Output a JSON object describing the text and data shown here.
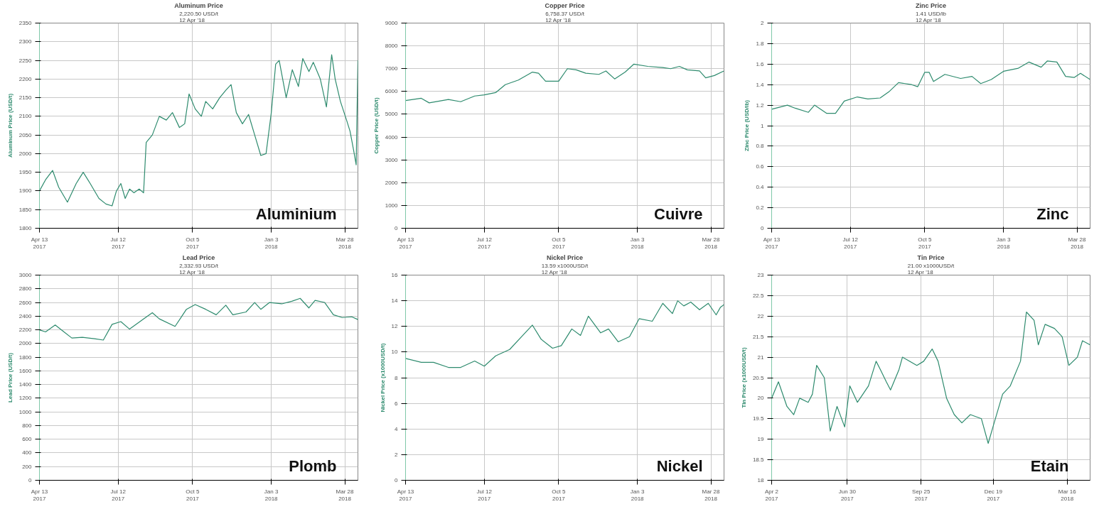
{
  "chart_data": [
    {
      "type": "line",
      "title": "Aluminum Price",
      "subtitle": "2,220.50 USD/t\n12 Apr '18",
      "ylabel": "Aluminum Price (USD/t)",
      "annotations": [
        "Aluminium"
      ],
      "grid": true,
      "xlim": [
        "2017-04-13",
        "2018-04-12"
      ],
      "ylim": [
        1800,
        2350
      ],
      "yticks": [
        1800,
        1850,
        1900,
        1950,
        2000,
        2050,
        2100,
        2150,
        2200,
        2250,
        2300,
        2350
      ],
      "xticks": [
        {
          "value": "2017-04-13",
          "label": "Apr 13\n2017"
        },
        {
          "value": "2017-07-12",
          "label": "Jul 12\n2017"
        },
        {
          "value": "2017-10-05",
          "label": "Oct 5\n2017"
        },
        {
          "value": "2018-01-03",
          "label": "Jan 3\n2018"
        },
        {
          "value": "2018-03-28",
          "label": "Mar 28\n2018"
        }
      ],
      "x": [
        "2017-04-13",
        "2017-04-20",
        "2017-04-28",
        "2017-05-05",
        "2017-05-15",
        "2017-05-25",
        "2017-06-02",
        "2017-06-10",
        "2017-06-20",
        "2017-06-28",
        "2017-07-05",
        "2017-07-10",
        "2017-07-15",
        "2017-07-20",
        "2017-07-25",
        "2017-07-30",
        "2017-08-05",
        "2017-08-10",
        "2017-08-13",
        "2017-08-20",
        "2017-08-28",
        "2017-09-05",
        "2017-09-12",
        "2017-09-20",
        "2017-09-26",
        "2017-10-01",
        "2017-10-08",
        "2017-10-15",
        "2017-10-20",
        "2017-10-28",
        "2017-11-05",
        "2017-11-12",
        "2017-11-18",
        "2017-11-24",
        "2017-12-01",
        "2017-12-08",
        "2017-12-15",
        "2017-12-22",
        "2017-12-28",
        "2018-01-03",
        "2018-01-08",
        "2018-01-12",
        "2018-01-20",
        "2018-01-27",
        "2018-02-03",
        "2018-02-08",
        "2018-02-15",
        "2018-02-20",
        "2018-02-28",
        "2018-03-07",
        "2018-03-13",
        "2018-03-17",
        "2018-03-23",
        "2018-03-30",
        "2018-04-03",
        "2018-04-07",
        "2018-04-10",
        "2018-04-12"
      ],
      "series": [
        {
          "color": "#2e8b6e",
          "values": [
            1900,
            1930,
            1955,
            1910,
            1870,
            1920,
            1950,
            1920,
            1880,
            1865,
            1860,
            1900,
            1920,
            1880,
            1905,
            1895,
            1905,
            1895,
            2030,
            2050,
            2100,
            2090,
            2110,
            2070,
            2080,
            2160,
            2120,
            2100,
            2140,
            2120,
            2150,
            2170,
            2185,
            2110,
            2080,
            2105,
            2050,
            1995,
            2000,
            2110,
            2240,
            2250,
            2150,
            2225,
            2180,
            2255,
            2220,
            2245,
            2200,
            2125,
            2265,
            2200,
            2140,
            2090,
            2060,
            2010,
            1970,
            2250
          ]
        }
      ]
    },
    {
      "type": "line",
      "title": "Copper Price",
      "subtitle": "6,758.37 USD/t\n12 Apr '18",
      "ylabel": "Copper Price (USD/t)",
      "annotations": [
        "Cuivre"
      ],
      "grid": true,
      "xlim": [
        "2017-04-13",
        "2018-04-12"
      ],
      "ylim": [
        0,
        9000
      ],
      "yticks": [
        0,
        1000,
        2000,
        3000,
        4000,
        5000,
        6000,
        7000,
        8000,
        9000
      ],
      "xticks": [
        {
          "value": "2017-04-13",
          "label": "Apr 13\n2017"
        },
        {
          "value": "2017-07-12",
          "label": "Jul 12\n2017"
        },
        {
          "value": "2017-10-05",
          "label": "Oct 5\n2017"
        },
        {
          "value": "2018-01-03",
          "label": "Jan 3\n2018"
        },
        {
          "value": "2018-03-28",
          "label": "Mar 28\n2018"
        }
      ],
      "x": [
        "2017-04-13",
        "2017-05-01",
        "2017-05-10",
        "2017-06-01",
        "2017-06-15",
        "2017-07-01",
        "2017-07-12",
        "2017-07-25",
        "2017-08-05",
        "2017-08-20",
        "2017-09-05",
        "2017-09-12",
        "2017-09-20",
        "2017-10-05",
        "2017-10-15",
        "2017-10-25",
        "2017-11-05",
        "2017-11-20",
        "2017-11-28",
        "2017-12-08",
        "2017-12-20",
        "2017-12-30",
        "2018-01-15",
        "2018-02-01",
        "2018-02-10",
        "2018-02-20",
        "2018-03-01",
        "2018-03-15",
        "2018-03-22",
        "2018-04-01",
        "2018-04-12"
      ],
      "series": [
        {
          "color": "#2e8b6e",
          "values": [
            5600,
            5700,
            5500,
            5650,
            5550,
            5800,
            5850,
            5950,
            6300,
            6500,
            6850,
            6800,
            6450,
            6450,
            7000,
            6950,
            6800,
            6750,
            6900,
            6550,
            6850,
            7200,
            7100,
            7050,
            7000,
            7100,
            6950,
            6900,
            6600,
            6700,
            6900
          ]
        }
      ]
    },
    {
      "type": "line",
      "title": "Zinc Price",
      "subtitle": "1.41 USD/lb\n12 Apr '18",
      "ylabel": "Zinc Price (USD/lb)",
      "annotations": [
        "Zinc"
      ],
      "grid": true,
      "xlim": [
        "2017-04-13",
        "2018-04-12"
      ],
      "ylim": [
        0,
        2
      ],
      "yticks": [
        0,
        {
          "value": 0.2,
          "label": "0.2"
        },
        {
          "value": 0.4,
          "label": "0.4"
        },
        {
          "value": 0.6,
          "label": "0.6"
        },
        {
          "value": 0.8,
          "label": "0.8"
        },
        1,
        {
          "value": 1.2,
          "label": "1.2"
        },
        {
          "value": 1.4,
          "label": "1.4"
        },
        {
          "value": 1.6,
          "label": "1.6"
        },
        {
          "value": 1.8,
          "label": "1.8"
        },
        2
      ],
      "xticks": [
        {
          "value": "2017-04-13",
          "label": "Apr 13\n2017"
        },
        {
          "value": "2017-07-12",
          "label": "Jul 12\n2017"
        },
        {
          "value": "2017-10-05",
          "label": "Oct 5\n2017"
        },
        {
          "value": "2018-01-03",
          "label": "Jan 3\n2018"
        },
        {
          "value": "2018-03-28",
          "label": "Mar 28\n2018"
        }
      ],
      "x": [
        "2017-04-13",
        "2017-05-01",
        "2017-05-10",
        "2017-05-25",
        "2017-06-01",
        "2017-06-15",
        "2017-06-25",
        "2017-07-05",
        "2017-07-20",
        "2017-08-01",
        "2017-08-15",
        "2017-08-25",
        "2017-09-05",
        "2017-09-20",
        "2017-09-27",
        "2017-10-05",
        "2017-10-10",
        "2017-10-15",
        "2017-10-28",
        "2017-11-15",
        "2017-11-28",
        "2017-12-08",
        "2017-12-20",
        "2018-01-03",
        "2018-01-20",
        "2018-02-01",
        "2018-02-15",
        "2018-02-22",
        "2018-03-05",
        "2018-03-15",
        "2018-03-25",
        "2018-04-01",
        "2018-04-12"
      ],
      "series": [
        {
          "color": "#2e8b6e",
          "values": [
            1.16,
            1.2,
            1.17,
            1.13,
            1.2,
            1.12,
            1.12,
            1.24,
            1.28,
            1.26,
            1.27,
            1.33,
            1.42,
            1.4,
            1.38,
            1.52,
            1.52,
            1.43,
            1.5,
            1.46,
            1.48,
            1.41,
            1.45,
            1.53,
            1.56,
            1.62,
            1.57,
            1.63,
            1.62,
            1.48,
            1.47,
            1.51,
            1.45
          ]
        }
      ]
    },
    {
      "type": "line",
      "title": "Lead Price",
      "subtitle": "2,332.93 USD/t\n12 Apr '18",
      "ylabel": "Lead Price (USD/t)",
      "annotations": [
        "Plomb"
      ],
      "grid": true,
      "xlim": [
        "2017-04-13",
        "2018-04-12"
      ],
      "ylim": [
        0,
        3000
      ],
      "yticks": [
        0,
        200,
        400,
        600,
        800,
        1000,
        1200,
        1400,
        1600,
        1800,
        2000,
        2200,
        2400,
        2600,
        2800,
        3000
      ],
      "xticks": [
        {
          "value": "2017-04-13",
          "label": "Apr 13\n2017"
        },
        {
          "value": "2017-07-12",
          "label": "Jul 12\n2017"
        },
        {
          "value": "2017-10-05",
          "label": "Oct 5\n2017"
        },
        {
          "value": "2018-01-03",
          "label": "Jan 3\n2018"
        },
        {
          "value": "2018-03-28",
          "label": "Mar 28\n2018"
        }
      ],
      "x": [
        "2017-04-13",
        "2017-04-20",
        "2017-05-01",
        "2017-05-10",
        "2017-05-20",
        "2017-06-01",
        "2017-06-15",
        "2017-06-25",
        "2017-07-05",
        "2017-07-15",
        "2017-07-25",
        "2017-08-10",
        "2017-08-20",
        "2017-08-28",
        "2017-09-15",
        "2017-09-28",
        "2017-10-08",
        "2017-10-20",
        "2017-11-01",
        "2017-11-12",
        "2017-11-20",
        "2017-12-05",
        "2017-12-15",
        "2017-12-22",
        "2018-01-01",
        "2018-01-15",
        "2018-01-27",
        "2018-02-05",
        "2018-02-15",
        "2018-02-22",
        "2018-03-05",
        "2018-03-15",
        "2018-03-25",
        "2018-04-05",
        "2018-04-12"
      ],
      "series": [
        {
          "color": "#2e8b6e",
          "values": [
            2200,
            2170,
            2270,
            2180,
            2080,
            2090,
            2070,
            2050,
            2280,
            2320,
            2210,
            2360,
            2450,
            2360,
            2250,
            2500,
            2570,
            2500,
            2420,
            2560,
            2420,
            2460,
            2600,
            2500,
            2600,
            2580,
            2620,
            2660,
            2520,
            2630,
            2600,
            2420,
            2380,
            2390,
            2350
          ]
        }
      ]
    },
    {
      "type": "line",
      "title": "Nickel Price",
      "subtitle": "13.59 x1000USD/t\n12 Apr '18",
      "ylabel": "Nickel Price (x1000USD/t)",
      "annotations": [
        "Nickel"
      ],
      "grid": true,
      "xlim": [
        "2017-04-13",
        "2018-04-12"
      ],
      "ylim": [
        0,
        16
      ],
      "yticks": [
        0,
        2,
        4,
        6,
        8,
        10,
        12,
        14,
        16
      ],
      "xticks": [
        {
          "value": "2017-04-13",
          "label": "Apr 13\n2017"
        },
        {
          "value": "2017-07-12",
          "label": "Jul 12\n2017"
        },
        {
          "value": "2017-10-05",
          "label": "Oct 5\n2017"
        },
        {
          "value": "2018-01-03",
          "label": "Jan 3\n2018"
        },
        {
          "value": "2018-03-28",
          "label": "Mar 28\n2018"
        }
      ],
      "x": [
        "2017-04-13",
        "2017-05-01",
        "2017-05-15",
        "2017-06-01",
        "2017-06-15",
        "2017-07-01",
        "2017-07-12",
        "2017-07-25",
        "2017-08-10",
        "2017-08-25",
        "2017-09-05",
        "2017-09-15",
        "2017-09-28",
        "2017-10-08",
        "2017-10-20",
        "2017-10-30",
        "2017-11-08",
        "2017-11-22",
        "2017-12-01",
        "2017-12-12",
        "2017-12-25",
        "2018-01-05",
        "2018-01-20",
        "2018-02-01",
        "2018-02-12",
        "2018-02-18",
        "2018-02-25",
        "2018-03-05",
        "2018-03-15",
        "2018-03-25",
        "2018-04-03",
        "2018-04-08",
        "2018-04-12"
      ],
      "series": [
        {
          "color": "#2e8b6e",
          "values": [
            9.5,
            9.2,
            9.2,
            8.8,
            8.8,
            9.3,
            8.9,
            9.7,
            10.2,
            11.3,
            12.1,
            11.0,
            10.3,
            10.5,
            11.8,
            11.3,
            12.8,
            11.5,
            11.8,
            10.8,
            11.2,
            12.6,
            12.4,
            13.8,
            13.0,
            14.0,
            13.6,
            13.9,
            13.3,
            13.8,
            12.9,
            13.5,
            13.7
          ]
        }
      ]
    },
    {
      "type": "line",
      "title": "Tin Price",
      "subtitle": "21.00 x1000USD/t\n12 Apr '18",
      "ylabel": "Tin Price (x1000USD/t)",
      "annotations": [
        "Etain"
      ],
      "grid": true,
      "xlim": [
        "2017-04-02",
        "2018-04-12"
      ],
      "ylim": [
        18,
        23
      ],
      "yticks": [
        18,
        {
          "value": 18.5,
          "label": "18.5"
        },
        19,
        {
          "value": 19.5,
          "label": "19.5"
        },
        20,
        {
          "value": 20.5,
          "label": "20.5"
        },
        21,
        {
          "value": 21.5,
          "label": "21.5"
        },
        22,
        {
          "value": 22.5,
          "label": "22.5"
        },
        23
      ],
      "xticks": [
        {
          "value": "2017-04-02",
          "label": "Apr 2\n2017"
        },
        {
          "value": "2017-06-30",
          "label": "Jun 30\n2017"
        },
        {
          "value": "2017-09-25",
          "label": "Sep 25\n2017"
        },
        {
          "value": "2017-12-19",
          "label": "Dec 19\n2017"
        },
        {
          "value": "2018-03-16",
          "label": "Mar 16\n2018"
        }
      ],
      "x": [
        "2017-04-02",
        "2017-04-10",
        "2017-04-20",
        "2017-04-28",
        "2017-05-05",
        "2017-05-15",
        "2017-05-20",
        "2017-05-25",
        "2017-06-03",
        "2017-06-10",
        "2017-06-18",
        "2017-06-27",
        "2017-07-03",
        "2017-07-12",
        "2017-07-25",
        "2017-08-03",
        "2017-08-08",
        "2017-08-15",
        "2017-08-20",
        "2017-08-30",
        "2017-09-03",
        "2017-09-20",
        "2017-09-28",
        "2017-10-08",
        "2017-10-15",
        "2017-10-25",
        "2017-11-03",
        "2017-11-12",
        "2017-11-22",
        "2017-12-05",
        "2017-12-13",
        "2017-12-20",
        "2017-12-30",
        "2018-01-08",
        "2018-01-20",
        "2018-01-27",
        "2018-02-05",
        "2018-02-10",
        "2018-02-18",
        "2018-03-01",
        "2018-03-10",
        "2018-03-18",
        "2018-03-28",
        "2018-04-03",
        "2018-04-12"
      ],
      "series": [
        {
          "color": "#2e8b6e",
          "values": [
            20.0,
            20.4,
            19.8,
            19.6,
            20.0,
            19.9,
            20.1,
            20.8,
            20.5,
            19.2,
            19.8,
            19.3,
            20.3,
            19.9,
            20.3,
            20.9,
            20.7,
            20.4,
            20.2,
            20.7,
            21.0,
            20.8,
            20.9,
            21.2,
            20.9,
            20.0,
            19.6,
            19.4,
            19.6,
            19.5,
            18.9,
            19.4,
            20.1,
            20.3,
            20.9,
            22.1,
            21.9,
            21.3,
            21.8,
            21.7,
            21.5,
            20.8,
            21.0,
            21.4,
            21.3
          ]
        }
      ]
    }
  ]
}
